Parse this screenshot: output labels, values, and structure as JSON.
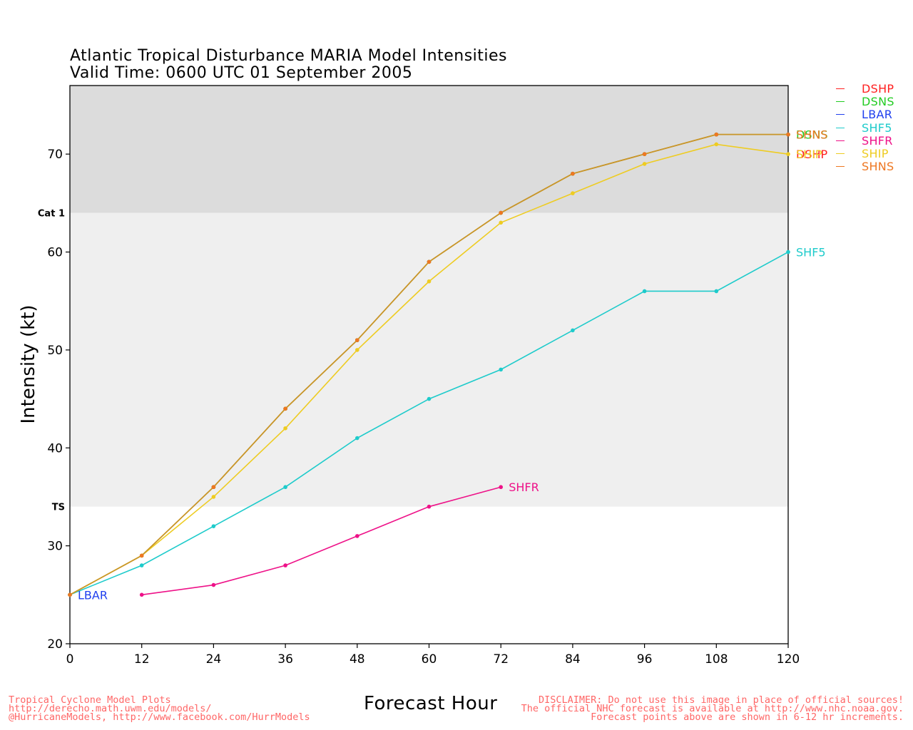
{
  "title_line1": "Atlantic Tropical Disturbance MARIA Model Intensities",
  "title_line2": "Valid Time: 0600 UTC 01 September 2005",
  "credits": [
    "Tropical Cyclone Model Plots",
    "http://derecho.math.uwm.edu/models/",
    "@HurricaneModels, http://www.facebook.com/HurrModels"
  ],
  "disclaimer": [
    "DISCLAIMER: Do not use this image in place of official sources!",
    "The official NHC forecast is available at http://www.nhc.noaa.gov.",
    "Forecast points above are shown in 6-12 hr increments."
  ],
  "chart_data": {
    "type": "line",
    "xlabel": "Forecast Hour",
    "ylabel": "Intensity (kt)",
    "xlim": [
      0,
      120
    ],
    "ylim": [
      20,
      77
    ],
    "xticks": [
      0,
      12,
      24,
      36,
      48,
      60,
      72,
      84,
      96,
      108,
      120
    ],
    "yticks": [
      20,
      30,
      40,
      50,
      60,
      70
    ],
    "bands": [
      {
        "label": "Cat 1",
        "from": 64,
        "to": 77,
        "color": "#dcdcdc"
      },
      {
        "label": "TS",
        "from": 34,
        "to": 64,
        "color": "#efefef"
      }
    ],
    "grid": false,
    "legend_position": "right",
    "series": [
      {
        "name": "DSHP",
        "color": "#ff2020",
        "x": [
          0,
          12,
          24,
          36,
          48,
          60,
          72,
          84,
          96,
          108,
          120
        ],
        "values": [
          25,
          29,
          36,
          44,
          51,
          59,
          64,
          68,
          70,
          72,
          72
        ],
        "end_label": "DSHP",
        "label_y": 70
      },
      {
        "name": "DSNS",
        "color": "#22cc22",
        "x": [
          0,
          12,
          24,
          36,
          48,
          60,
          72,
          84,
          96,
          108,
          120
        ],
        "values": [
          25,
          29,
          36,
          44,
          51,
          59,
          64,
          68,
          70,
          72,
          72
        ],
        "end_label": "DSNS",
        "label_y": 72
      },
      {
        "name": "LBAR",
        "color": "#2040ee",
        "x": [
          0
        ],
        "values": [
          25
        ],
        "end_label": "LBAR",
        "label_y": 25
      },
      {
        "name": "SHF5",
        "color": "#1ecbcb",
        "x": [
          0,
          12,
          24,
          36,
          48,
          60,
          72,
          84,
          96,
          108,
          120
        ],
        "values": [
          25,
          28,
          32,
          36,
          41,
          45,
          48,
          52,
          56,
          56,
          60
        ],
        "end_label": "SHF5",
        "label_y": 60
      },
      {
        "name": "SHFR",
        "color": "#ee1188",
        "x": [
          12,
          24,
          36,
          48,
          60,
          72
        ],
        "values": [
          25,
          26,
          28,
          31,
          34,
          36
        ],
        "end_label": "SHFR",
        "label_y": 36
      },
      {
        "name": "SHIP",
        "color": "#eecc22",
        "x": [
          0,
          12,
          24,
          36,
          48,
          60,
          72,
          84,
          96,
          108,
          120
        ],
        "values": [
          25,
          29,
          35,
          42,
          50,
          57,
          63,
          66,
          69,
          71,
          70
        ],
        "end_label": "SHIP",
        "label_y": 70
      },
      {
        "name": "SHNS",
        "color": "#ee7722",
        "x": [
          0,
          12,
          24,
          36,
          48,
          60,
          72,
          84,
          96,
          108,
          120
        ],
        "values": [
          25,
          29,
          36,
          44,
          51,
          59,
          64,
          68,
          70,
          72,
          72
        ],
        "end_label": "SHNS",
        "label_y": 72
      }
    ],
    "overlay_color": "#c8962a"
  }
}
